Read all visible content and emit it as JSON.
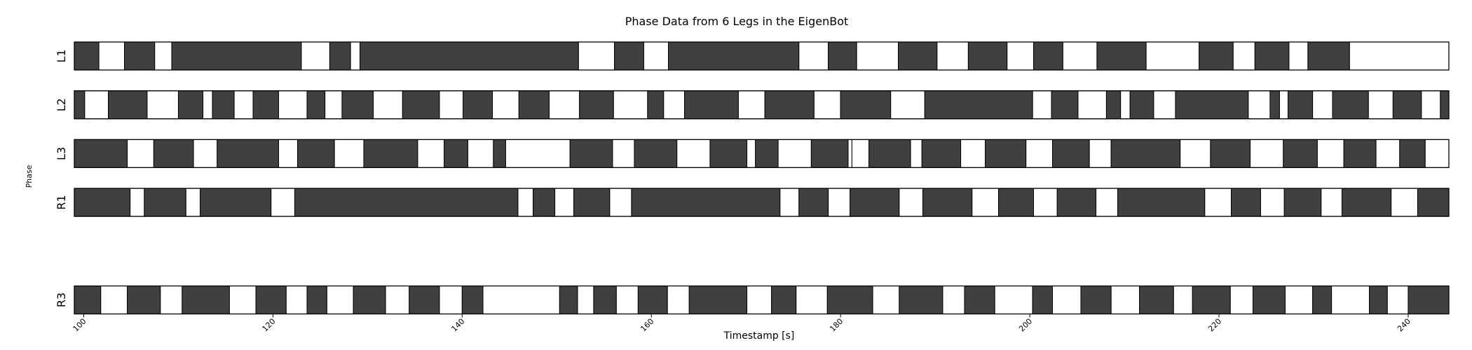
{
  "chart_data": {
    "type": "gantt-phase",
    "title": "Phase Data from 6 Legs in the EigenBot",
    "xlabel": "Timestamp [s]",
    "ylabel": "Phase",
    "xlim": [
      99,
      244.3
    ],
    "xticks": [
      100,
      120,
      140,
      160,
      180,
      200,
      220,
      240
    ],
    "colors": {
      "stance": "#404040",
      "swing": "#ffffff",
      "edge": "#000000"
    },
    "rows": [
      {
        "label": "L1",
        "slot": 0,
        "segments": [
          [
            99.0,
            101.6,
            "dark"
          ],
          [
            101.6,
            104.3,
            "light"
          ],
          [
            104.3,
            107.5,
            "dark"
          ],
          [
            107.5,
            109.3,
            "light"
          ],
          [
            109.3,
            123.0,
            "dark"
          ],
          [
            123.0,
            126.0,
            "light"
          ],
          [
            126.0,
            128.2,
            "dark"
          ],
          [
            128.2,
            129.2,
            "light"
          ],
          [
            129.2,
            152.3,
            "dark"
          ],
          [
            152.3,
            156.1,
            "light"
          ],
          [
            156.1,
            159.2,
            "dark"
          ],
          [
            159.2,
            161.8,
            "light"
          ],
          [
            161.8,
            175.6,
            "dark"
          ],
          [
            175.6,
            178.7,
            "light"
          ],
          [
            178.7,
            181.7,
            "dark"
          ],
          [
            181.7,
            186.1,
            "light"
          ],
          [
            186.1,
            190.2,
            "dark"
          ],
          [
            190.2,
            193.5,
            "light"
          ],
          [
            193.5,
            197.6,
            "dark"
          ],
          [
            197.6,
            200.4,
            "light"
          ],
          [
            200.4,
            203.5,
            "dark"
          ],
          [
            203.5,
            207.1,
            "light"
          ],
          [
            207.1,
            212.3,
            "dark"
          ],
          [
            212.3,
            217.9,
            "light"
          ],
          [
            217.9,
            221.5,
            "dark"
          ],
          [
            221.5,
            223.8,
            "light"
          ],
          [
            223.8,
            227.4,
            "dark"
          ],
          [
            227.4,
            229.4,
            "light"
          ],
          [
            229.4,
            233.8,
            "dark"
          ],
          [
            233.8,
            244.3,
            "light"
          ]
        ]
      },
      {
        "label": "L2",
        "slot": 1,
        "segments": [
          [
            99.0,
            100.1,
            "dark"
          ],
          [
            100.1,
            102.6,
            "light"
          ],
          [
            102.6,
            106.7,
            "dark"
          ],
          [
            106.7,
            110.0,
            "light"
          ],
          [
            110.0,
            112.6,
            "dark"
          ],
          [
            112.6,
            113.6,
            "light"
          ],
          [
            113.6,
            115.9,
            "dark"
          ],
          [
            115.9,
            117.9,
            "light"
          ],
          [
            117.9,
            120.6,
            "dark"
          ],
          [
            120.6,
            123.6,
            "light"
          ],
          [
            123.6,
            125.5,
            "dark"
          ],
          [
            125.5,
            127.3,
            "light"
          ],
          [
            127.3,
            130.6,
            "dark"
          ],
          [
            130.6,
            133.7,
            "light"
          ],
          [
            133.7,
            137.6,
            "dark"
          ],
          [
            137.6,
            140.1,
            "light"
          ],
          [
            140.1,
            143.2,
            "dark"
          ],
          [
            143.2,
            146.0,
            "light"
          ],
          [
            146.0,
            149.2,
            "dark"
          ],
          [
            149.2,
            152.4,
            "light"
          ],
          [
            152.4,
            156.0,
            "dark"
          ],
          [
            156.0,
            159.6,
            "light"
          ],
          [
            159.6,
            161.3,
            "dark"
          ],
          [
            161.3,
            163.5,
            "light"
          ],
          [
            163.5,
            169.2,
            "dark"
          ],
          [
            169.2,
            172.0,
            "light"
          ],
          [
            172.0,
            177.2,
            "dark"
          ],
          [
            177.2,
            180.0,
            "light"
          ],
          [
            180.0,
            185.3,
            "dark"
          ],
          [
            185.3,
            188.9,
            "light"
          ],
          [
            188.9,
            200.3,
            "dark"
          ],
          [
            200.3,
            202.3,
            "light"
          ],
          [
            202.3,
            205.1,
            "dark"
          ],
          [
            205.1,
            208.1,
            "light"
          ],
          [
            208.1,
            209.6,
            "dark"
          ],
          [
            209.6,
            210.6,
            "light"
          ],
          [
            210.6,
            213.1,
            "dark"
          ],
          [
            213.1,
            215.4,
            "light"
          ],
          [
            215.4,
            223.1,
            "dark"
          ],
          [
            223.1,
            225.4,
            "light"
          ],
          [
            225.4,
            226.4,
            "dark"
          ],
          [
            226.4,
            227.3,
            "light"
          ],
          [
            227.3,
            229.9,
            "dark"
          ],
          [
            229.9,
            232.0,
            "light"
          ],
          [
            232.0,
            235.8,
            "dark"
          ],
          [
            235.8,
            238.4,
            "light"
          ],
          [
            238.4,
            241.4,
            "dark"
          ],
          [
            241.4,
            243.4,
            "light"
          ],
          [
            243.4,
            244.3,
            "dark"
          ]
        ]
      },
      {
        "label": "L3",
        "slot": 2,
        "segments": [
          [
            99.0,
            104.6,
            "dark"
          ],
          [
            104.6,
            107.4,
            "light"
          ],
          [
            107.4,
            111.6,
            "dark"
          ],
          [
            111.6,
            114.1,
            "light"
          ],
          [
            114.1,
            120.6,
            "dark"
          ],
          [
            120.6,
            122.6,
            "light"
          ],
          [
            122.6,
            126.5,
            "dark"
          ],
          [
            126.5,
            129.6,
            "light"
          ],
          [
            129.6,
            135.3,
            "dark"
          ],
          [
            135.3,
            138.1,
            "light"
          ],
          [
            138.1,
            140.6,
            "dark"
          ],
          [
            140.6,
            143.3,
            "light"
          ],
          [
            143.3,
            144.6,
            "dark"
          ],
          [
            144.6,
            151.4,
            "light"
          ],
          [
            151.4,
            155.9,
            "dark"
          ],
          [
            155.9,
            158.2,
            "light"
          ],
          [
            158.2,
            162.7,
            "dark"
          ],
          [
            162.7,
            166.2,
            "light"
          ],
          [
            166.2,
            170.1,
            "dark"
          ],
          [
            170.1,
            171.0,
            "light"
          ],
          [
            171.0,
            173.4,
            "dark"
          ],
          [
            173.4,
            176.9,
            "light"
          ],
          [
            176.9,
            180.8,
            "dark"
          ],
          [
            180.8,
            181.2,
            "light"
          ],
          [
            181.2,
            183.0,
            "light"
          ],
          [
            183.0,
            187.4,
            "dark"
          ],
          [
            187.4,
            188.6,
            "light"
          ],
          [
            188.6,
            192.7,
            "dark"
          ],
          [
            192.7,
            195.3,
            "light"
          ],
          [
            195.3,
            199.6,
            "dark"
          ],
          [
            199.6,
            202.4,
            "light"
          ],
          [
            202.4,
            206.3,
            "dark"
          ],
          [
            206.3,
            208.6,
            "light"
          ],
          [
            208.6,
            215.9,
            "dark"
          ],
          [
            215.9,
            219.1,
            "light"
          ],
          [
            219.1,
            223.3,
            "dark"
          ],
          [
            223.3,
            226.8,
            "light"
          ],
          [
            226.8,
            230.4,
            "dark"
          ],
          [
            230.4,
            233.2,
            "light"
          ],
          [
            233.2,
            236.6,
            "dark"
          ],
          [
            236.6,
            239.1,
            "light"
          ],
          [
            239.1,
            241.8,
            "dark"
          ],
          [
            241.8,
            244.3,
            "light"
          ]
        ]
      },
      {
        "label": "R1",
        "slot": 3,
        "segments": [
          [
            99.0,
            104.9,
            "dark"
          ],
          [
            104.9,
            106.4,
            "light"
          ],
          [
            106.4,
            110.8,
            "dark"
          ],
          [
            110.8,
            112.3,
            "light"
          ],
          [
            112.3,
            119.8,
            "dark"
          ],
          [
            119.8,
            122.3,
            "light"
          ],
          [
            122.3,
            145.9,
            "dark"
          ],
          [
            145.9,
            147.5,
            "light"
          ],
          [
            147.5,
            149.8,
            "dark"
          ],
          [
            149.8,
            151.8,
            "light"
          ],
          [
            151.8,
            155.6,
            "dark"
          ],
          [
            155.6,
            157.9,
            "light"
          ],
          [
            157.9,
            173.6,
            "dark"
          ],
          [
            173.6,
            175.6,
            "light"
          ],
          [
            175.6,
            178.7,
            "dark"
          ],
          [
            178.7,
            181.0,
            "light"
          ],
          [
            181.0,
            186.2,
            "dark"
          ],
          [
            186.2,
            188.7,
            "light"
          ],
          [
            188.7,
            193.9,
            "dark"
          ],
          [
            193.9,
            196.7,
            "light"
          ],
          [
            196.7,
            200.4,
            "dark"
          ],
          [
            200.4,
            202.9,
            "light"
          ],
          [
            202.9,
            207.0,
            "dark"
          ],
          [
            207.0,
            209.3,
            "light"
          ],
          [
            209.3,
            218.5,
            "dark"
          ],
          [
            218.5,
            221.3,
            "light"
          ],
          [
            221.3,
            224.4,
            "dark"
          ],
          [
            224.4,
            226.9,
            "light"
          ],
          [
            226.9,
            230.8,
            "dark"
          ],
          [
            230.8,
            233.0,
            "light"
          ],
          [
            233.0,
            238.2,
            "dark"
          ],
          [
            238.2,
            241.0,
            "light"
          ],
          [
            241.0,
            244.3,
            "dark"
          ]
        ]
      },
      {
        "label": "R3",
        "slot": 5,
        "segments": [
          [
            99.0,
            101.8,
            "dark"
          ],
          [
            101.8,
            104.6,
            "light"
          ],
          [
            104.6,
            108.1,
            "dark"
          ],
          [
            108.1,
            110.4,
            "light"
          ],
          [
            110.4,
            115.4,
            "dark"
          ],
          [
            115.4,
            118.2,
            "light"
          ],
          [
            118.2,
            121.4,
            "dark"
          ],
          [
            121.4,
            123.6,
            "light"
          ],
          [
            123.6,
            125.7,
            "dark"
          ],
          [
            125.7,
            128.5,
            "light"
          ],
          [
            128.5,
            131.9,
            "dark"
          ],
          [
            131.9,
            134.4,
            "light"
          ],
          [
            134.4,
            137.6,
            "dark"
          ],
          [
            137.6,
            140.0,
            "light"
          ],
          [
            140.0,
            142.2,
            "dark"
          ],
          [
            142.2,
            150.3,
            "light"
          ],
          [
            150.3,
            152.2,
            "dark"
          ],
          [
            152.2,
            153.9,
            "light"
          ],
          [
            153.9,
            156.3,
            "dark"
          ],
          [
            156.3,
            158.6,
            "light"
          ],
          [
            158.6,
            161.7,
            "dark"
          ],
          [
            161.7,
            164.0,
            "light"
          ],
          [
            164.0,
            170.1,
            "dark"
          ],
          [
            170.1,
            172.7,
            "light"
          ],
          [
            172.7,
            175.3,
            "dark"
          ],
          [
            175.3,
            178.6,
            "light"
          ],
          [
            178.6,
            183.4,
            "dark"
          ],
          [
            183.4,
            186.2,
            "light"
          ],
          [
            186.2,
            190.8,
            "dark"
          ],
          [
            190.8,
            193.1,
            "light"
          ],
          [
            193.1,
            196.3,
            "dark"
          ],
          [
            196.3,
            200.3,
            "light"
          ],
          [
            200.3,
            202.4,
            "dark"
          ],
          [
            202.4,
            205.4,
            "light"
          ],
          [
            205.4,
            208.6,
            "dark"
          ],
          [
            208.6,
            211.6,
            "light"
          ],
          [
            211.6,
            215.2,
            "dark"
          ],
          [
            215.2,
            217.2,
            "light"
          ],
          [
            217.2,
            221.2,
            "dark"
          ],
          [
            221.2,
            223.6,
            "light"
          ],
          [
            223.6,
            227.0,
            "dark"
          ],
          [
            227.0,
            229.9,
            "light"
          ],
          [
            229.9,
            231.9,
            "dark"
          ],
          [
            231.9,
            235.9,
            "light"
          ],
          [
            235.9,
            237.8,
            "dark"
          ],
          [
            237.8,
            240.0,
            "light"
          ],
          [
            240.0,
            244.3,
            "dark"
          ]
        ]
      }
    ]
  }
}
